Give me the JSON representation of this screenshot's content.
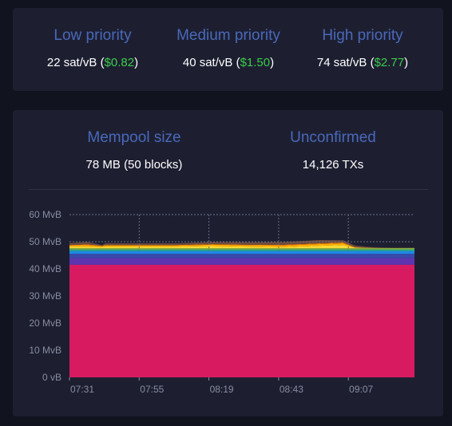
{
  "fees": {
    "low": {
      "title": "Low priority",
      "rate": "22 sat/vB",
      "usd": "$0.82"
    },
    "medium": {
      "title": "Medium priority",
      "rate": "40 sat/vB",
      "usd": "$1.50"
    },
    "high": {
      "title": "High priority",
      "rate": "74 sat/vB",
      "usd": "$2.77"
    }
  },
  "mempool": {
    "size_title": "Mempool size",
    "size_value": "78 MB (50 blocks)",
    "unconfirmed_title": "Unconfirmed",
    "unconfirmed_value": "14,126 TXs"
  },
  "chart_data": {
    "type": "area",
    "stacked": true,
    "title": "",
    "xlabel": "",
    "ylabel": "",
    "ylim": [
      0,
      60
    ],
    "y_unit": "MvB",
    "y_ticks": [
      0,
      10,
      20,
      30,
      40,
      50,
      60
    ],
    "y_tick_labels": [
      "0 vB",
      "10 MvB",
      "20 MvB",
      "30 MvB",
      "40 MvB",
      "50 MvB",
      "60 MvB"
    ],
    "x_tick_labels": [
      "07:31",
      "07:55",
      "08:19",
      "08:43",
      "09:07"
    ],
    "grid": true,
    "legend": "none",
    "x": [
      0,
      6,
      11,
      12,
      24,
      36,
      48,
      60,
      72,
      84,
      92,
      96,
      100,
      104,
      112,
      116
    ],
    "series": [
      {
        "color": "#d81b60",
        "values": [
          41.5,
          41.5,
          41.5,
          41.5,
          41.5,
          41.5,
          41.5,
          41.5,
          41.5,
          41.5,
          41.5,
          41.5,
          41.5,
          41.5,
          41.5,
          41.5
        ]
      },
      {
        "color": "#5e35b1",
        "values": [
          2.5,
          2.5,
          2.5,
          2.5,
          2.5,
          2.5,
          2.5,
          2.5,
          2.5,
          2.5,
          2.5,
          2.5,
          2.5,
          2.5,
          2.5,
          2.5
        ]
      },
      {
        "color": "#3949ab",
        "values": [
          1.5,
          1.5,
          1.5,
          1.5,
          1.5,
          1.5,
          1.5,
          1.5,
          1.5,
          1.5,
          1.5,
          1.5,
          1.5,
          1.5,
          1.5,
          1.5
        ]
      },
      {
        "color": "#1e88e5",
        "values": [
          1.0,
          1.0,
          1.0,
          1.0,
          1.0,
          1.0,
          1.0,
          1.0,
          1.0,
          1.0,
          1.0,
          1.0,
          1.0,
          1.0,
          1.0,
          1.0
        ]
      },
      {
        "color": "#26a69a",
        "values": [
          0.6,
          0.6,
          0.6,
          0.6,
          0.6,
          0.6,
          0.6,
          0.6,
          0.6,
          0.6,
          0.6,
          0.6,
          0.6,
          0.6,
          0.6,
          0.6
        ]
      },
      {
        "color": "#7cb342",
        "values": [
          0.5,
          0.5,
          0.5,
          0.5,
          0.5,
          0.5,
          0.5,
          0.5,
          0.5,
          0.5,
          0.5,
          0.5,
          0.5,
          0.5,
          0.5,
          0.5
        ]
      },
      {
        "color": "#fdd835",
        "values": [
          0.6,
          0.6,
          0.4,
          0.6,
          0.6,
          0.6,
          0.8,
          0.6,
          0.4,
          0.9,
          1.2,
          0.2,
          0.1,
          0.1,
          0.1,
          0.1
        ]
      },
      {
        "color": "#ffb300",
        "values": [
          0.4,
          0.5,
          0.3,
          0.4,
          0.4,
          0.4,
          0.5,
          0.5,
          0.6,
          0.6,
          0.6,
          0.1,
          0.1,
          0.0,
          0.0,
          0.0
        ]
      },
      {
        "color": "#f57c00",
        "values": [
          0.2,
          0.3,
          0.2,
          0.2,
          0.2,
          0.2,
          0.2,
          0.2,
          0.3,
          0.3,
          0.3,
          0.1,
          0.0,
          0.0,
          0.0,
          0.0
        ]
      },
      {
        "color": "#6d4c41",
        "values": [
          0.7,
          0.9,
          0.3,
          0.6,
          0.6,
          0.6,
          0.8,
          0.9,
          1.0,
          1.2,
          0.8,
          0.6,
          0.3,
          0.2,
          0.0,
          0.0
        ]
      }
    ]
  }
}
